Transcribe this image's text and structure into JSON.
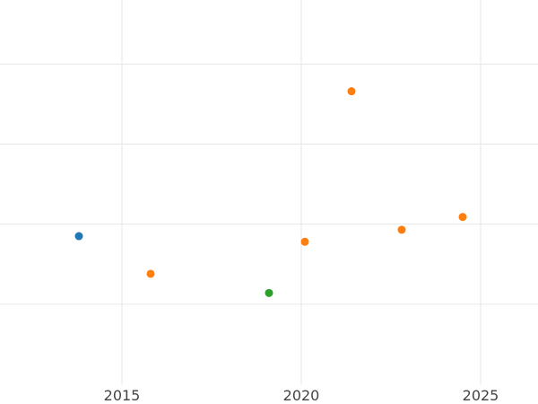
{
  "chart_data": {
    "type": "scatter",
    "title": "",
    "xlabel": "",
    "ylabel": "",
    "xlim": [
      2011.6,
      2026.6
    ],
    "ylim": [
      1.0,
      5.8
    ],
    "x_ticks": [
      2015,
      2020,
      2025
    ],
    "x_tick_labels": [
      "2015",
      "2020",
      "2025"
    ],
    "y_gridlines": [
      2.0,
      3.0,
      4.0,
      5.0
    ],
    "grid": true,
    "legend": "none",
    "series": [
      {
        "color": "#1f77b4",
        "points": [
          {
            "x": 2013.8,
            "y": 2.85
          }
        ]
      },
      {
        "color": "#ff7f0e",
        "points": [
          {
            "x": 2015.8,
            "y": 2.38
          },
          {
            "x": 2020.1,
            "y": 2.78
          },
          {
            "x": 2021.4,
            "y": 4.66
          },
          {
            "x": 2022.8,
            "y": 2.93
          },
          {
            "x": 2024.5,
            "y": 3.09
          }
        ]
      },
      {
        "color": "#2ca02c",
        "points": [
          {
            "x": 2019.1,
            "y": 2.14
          }
        ]
      }
    ]
  }
}
